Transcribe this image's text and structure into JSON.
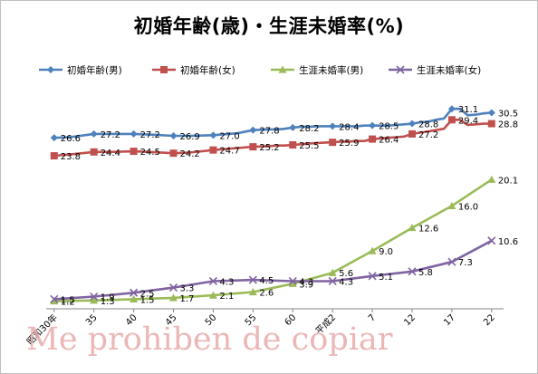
{
  "chart_data": {
    "type": "line",
    "title": "初婚年齢(歳)・生涯未婚率(%)",
    "categories": [
      "昭和30年",
      "35",
      "40",
      "45",
      "50",
      "55",
      "60",
      "平成2",
      "7",
      "12",
      "17",
      "22"
    ],
    "x": [
      1955,
      1960,
      1965,
      1970,
      1975,
      1980,
      1985,
      1990,
      1995,
      2000,
      2005,
      2010
    ],
    "xlim": [
      1954,
      2011.5
    ],
    "ylim": [
      0,
      32.4
    ],
    "grid": false,
    "legend_position": "top",
    "series": [
      {
        "name": "初婚年齢(男)",
        "color": "#4f81bd",
        "marker": "diamond",
        "x": [
          1955,
          1957,
          1960,
          1962,
          1965,
          1967,
          1970,
          1972,
          1975,
          1976,
          1977,
          1978,
          1980,
          1982,
          1983,
          1984,
          1985,
          1986,
          1987,
          1988,
          1990,
          1991,
          1992,
          1993,
          1994,
          1995,
          1996,
          1997,
          1998,
          1999,
          2000,
          2001,
          2002,
          2003,
          2004,
          2005,
          2006,
          2007,
          2008,
          2009,
          2010
        ],
        "values": [
          26.6,
          26.7,
          27.2,
          27.2,
          27.2,
          27.1,
          26.9,
          26.9,
          27.0,
          27.1,
          27.2,
          27.3,
          27.8,
          27.9,
          27.9,
          28.0,
          28.2,
          28.3,
          28.3,
          28.4,
          28.4,
          28.4,
          28.4,
          28.4,
          28.5,
          28.5,
          28.5,
          28.5,
          28.6,
          28.7,
          28.8,
          29.0,
          29.1,
          29.4,
          29.6,
          31.1,
          31.1,
          30.1,
          30.2,
          30.4,
          30.5
        ],
        "labels": {
          "1955": "26.6",
          "1960": "27.2",
          "1965": "27.2",
          "1970": "26.9",
          "1975": "27.0",
          "1980": "27.8",
          "1985": "28.2",
          "1990": "28.4",
          "1995": "28.5",
          "2000": "28.8",
          "2005": "31.1",
          "2010": "30.5"
        }
      },
      {
        "name": "初婚年齢(女)",
        "color": "#c0504d",
        "marker": "square",
        "x": [
          1955,
          1957,
          1960,
          1962,
          1965,
          1967,
          1970,
          1972,
          1975,
          1976,
          1977,
          1978,
          1980,
          1982,
          1983,
          1984,
          1985,
          1986,
          1987,
          1988,
          1990,
          1991,
          1992,
          1993,
          1994,
          1995,
          1996,
          1997,
          1998,
          1999,
          2000,
          2001,
          2002,
          2003,
          2004,
          2005,
          2006,
          2007,
          2008,
          2009,
          2010
        ],
        "values": [
          23.8,
          24.0,
          24.4,
          24.4,
          24.5,
          24.4,
          24.2,
          24.3,
          24.7,
          24.8,
          24.9,
          25.0,
          25.2,
          25.3,
          25.4,
          25.4,
          25.5,
          25.6,
          25.7,
          25.8,
          25.9,
          26.0,
          26.0,
          26.1,
          26.1,
          26.4,
          26.5,
          26.6,
          26.7,
          26.8,
          27.2,
          27.4,
          27.6,
          27.8,
          28.0,
          29.4,
          29.4,
          28.6,
          28.7,
          28.8,
          28.8
        ],
        "labels": {
          "1955": "23.8",
          "1960": "24.4",
          "1965": "24.5",
          "1970": "24.2",
          "1975": "24.7",
          "1980": "25.2",
          "1985": "25.5",
          "1990": "25.9",
          "1995": "26.4",
          "2000": "27.2",
          "2005": "29.4",
          "2010": "28.8"
        }
      },
      {
        "name": "生涯未婚率(男)",
        "color": "#9bbb59",
        "marker": "triangle",
        "x": [
          1955,
          1960,
          1965,
          1970,
          1975,
          1980,
          1985,
          1990,
          1995,
          2000,
          2005,
          2010
        ],
        "values": [
          1.2,
          1.3,
          1.5,
          1.7,
          2.1,
          2.6,
          3.9,
          5.6,
          9.0,
          12.6,
          16.0,
          20.1
        ]
      },
      {
        "name": "生涯未婚率(女)",
        "color": "#8064a2",
        "marker": "x",
        "x": [
          1955,
          1960,
          1965,
          1970,
          1975,
          1980,
          1985,
          1990,
          1995,
          2000,
          2005,
          2010
        ],
        "values": [
          1.5,
          1.9,
          2.5,
          3.3,
          4.3,
          4.5,
          4.3,
          4.3,
          5.1,
          5.8,
          7.3,
          10.6
        ]
      }
    ]
  },
  "watermark": "Me prohiben de copiar"
}
